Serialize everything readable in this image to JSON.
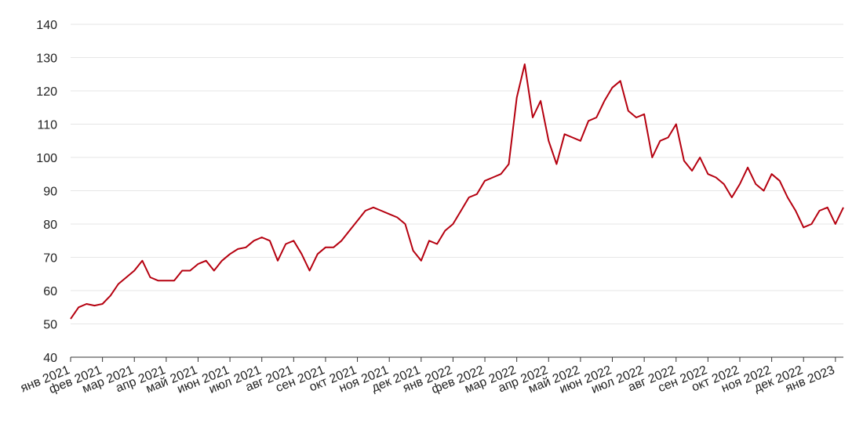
{
  "chart_data": {
    "type": "line",
    "categories": [
      "янв 2021",
      null,
      null,
      null,
      "фев 2021",
      null,
      null,
      null,
      "мар 2021",
      null,
      null,
      null,
      "апр 2021",
      null,
      null,
      null,
      "май 2021",
      null,
      null,
      null,
      "июн 2021",
      null,
      null,
      null,
      "июл 2021",
      null,
      null,
      null,
      "авг 2021",
      null,
      null,
      null,
      "сен 2021",
      null,
      null,
      null,
      "окт 2021",
      null,
      null,
      null,
      "ноя 2021",
      null,
      null,
      null,
      "дек 2021",
      null,
      null,
      null,
      "янв 2022",
      null,
      null,
      null,
      "фев 2022",
      null,
      null,
      null,
      "мар 2022",
      null,
      null,
      null,
      "апр 2022",
      null,
      null,
      null,
      "май 2022",
      null,
      null,
      null,
      "июн 2022",
      null,
      null,
      null,
      "июл 2022",
      null,
      null,
      null,
      "авг 2022",
      null,
      null,
      null,
      "сен 2022",
      null,
      null,
      null,
      "окт 2022",
      null,
      null,
      null,
      "ноя 2022",
      null,
      null,
      null,
      "дек 2022",
      null,
      null,
      null,
      "янв 2023",
      null
    ],
    "series": [
      {
        "color": "#b5000f",
        "values": [
          51.5,
          55,
          56,
          55.5,
          56,
          58.5,
          62,
          64,
          66,
          69,
          64,
          63,
          63,
          63,
          66,
          66,
          68,
          69,
          66,
          69,
          71,
          72.5,
          73,
          75,
          76,
          75,
          69,
          74,
          75,
          71,
          66,
          71,
          73,
          73,
          75,
          78,
          81,
          84,
          85,
          84,
          83,
          82,
          80,
          72,
          69,
          75,
          74,
          78,
          80,
          84,
          88,
          89,
          93,
          94,
          95,
          98,
          118,
          128,
          112,
          117,
          105,
          98,
          107,
          106,
          105,
          111,
          112,
          117,
          121,
          123,
          114,
          112,
          113,
          100,
          105,
          106,
          110,
          99,
          96,
          100,
          95,
          94,
          92,
          88,
          92,
          97,
          92,
          90,
          95,
          93,
          88,
          84,
          79,
          80,
          84,
          85,
          80,
          85
        ]
      }
    ],
    "ylim": [
      40,
      140
    ],
    "yticks": [
      40,
      50,
      60,
      70,
      80,
      90,
      100,
      110,
      120,
      130,
      140
    ],
    "grid": true
  }
}
